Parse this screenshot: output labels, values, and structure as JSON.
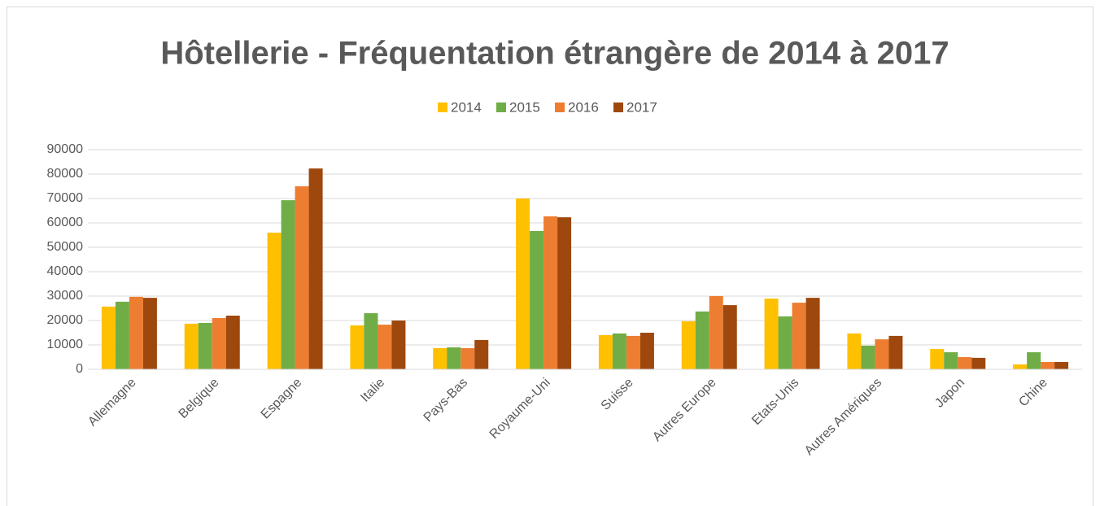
{
  "chart_data": {
    "type": "bar",
    "title": "Hôtellerie - Fréquentation étrangère de 2014 à 2017",
    "categories": [
      "Allemagne",
      "Belgique",
      "Espagne",
      "Italie",
      "Pays-Bas",
      "Royaume-Uni",
      "Suisse",
      "Autres Europe",
      "Etats-Unis",
      "Autres Amériques",
      "Japon",
      "Chine"
    ],
    "series": [
      {
        "name": "2014",
        "color": "#ffc000",
        "values": [
          25700,
          18700,
          56000,
          18000,
          8700,
          70000,
          14000,
          19700,
          29000,
          14700,
          8300,
          2000
        ]
      },
      {
        "name": "2015",
        "color": "#70ad47",
        "values": [
          27700,
          19000,
          69300,
          23000,
          9000,
          56700,
          14700,
          23700,
          21700,
          9700,
          7000,
          7000
        ]
      },
      {
        "name": "2016",
        "color": "#ed7d31",
        "values": [
          29700,
          21000,
          75000,
          18300,
          8700,
          62700,
          13700,
          30000,
          27300,
          12300,
          5000,
          3000
        ]
      },
      {
        "name": "2017",
        "color": "#9e480e",
        "values": [
          29300,
          22000,
          82300,
          20000,
          12000,
          62300,
          15000,
          26300,
          29300,
          13700,
          4700,
          3000
        ]
      }
    ],
    "ylim": [
      0,
      90000
    ],
    "yticks": [
      0,
      10000,
      20000,
      30000,
      40000,
      50000,
      60000,
      70000,
      80000,
      90000
    ],
    "grid": true,
    "legend": "top"
  }
}
